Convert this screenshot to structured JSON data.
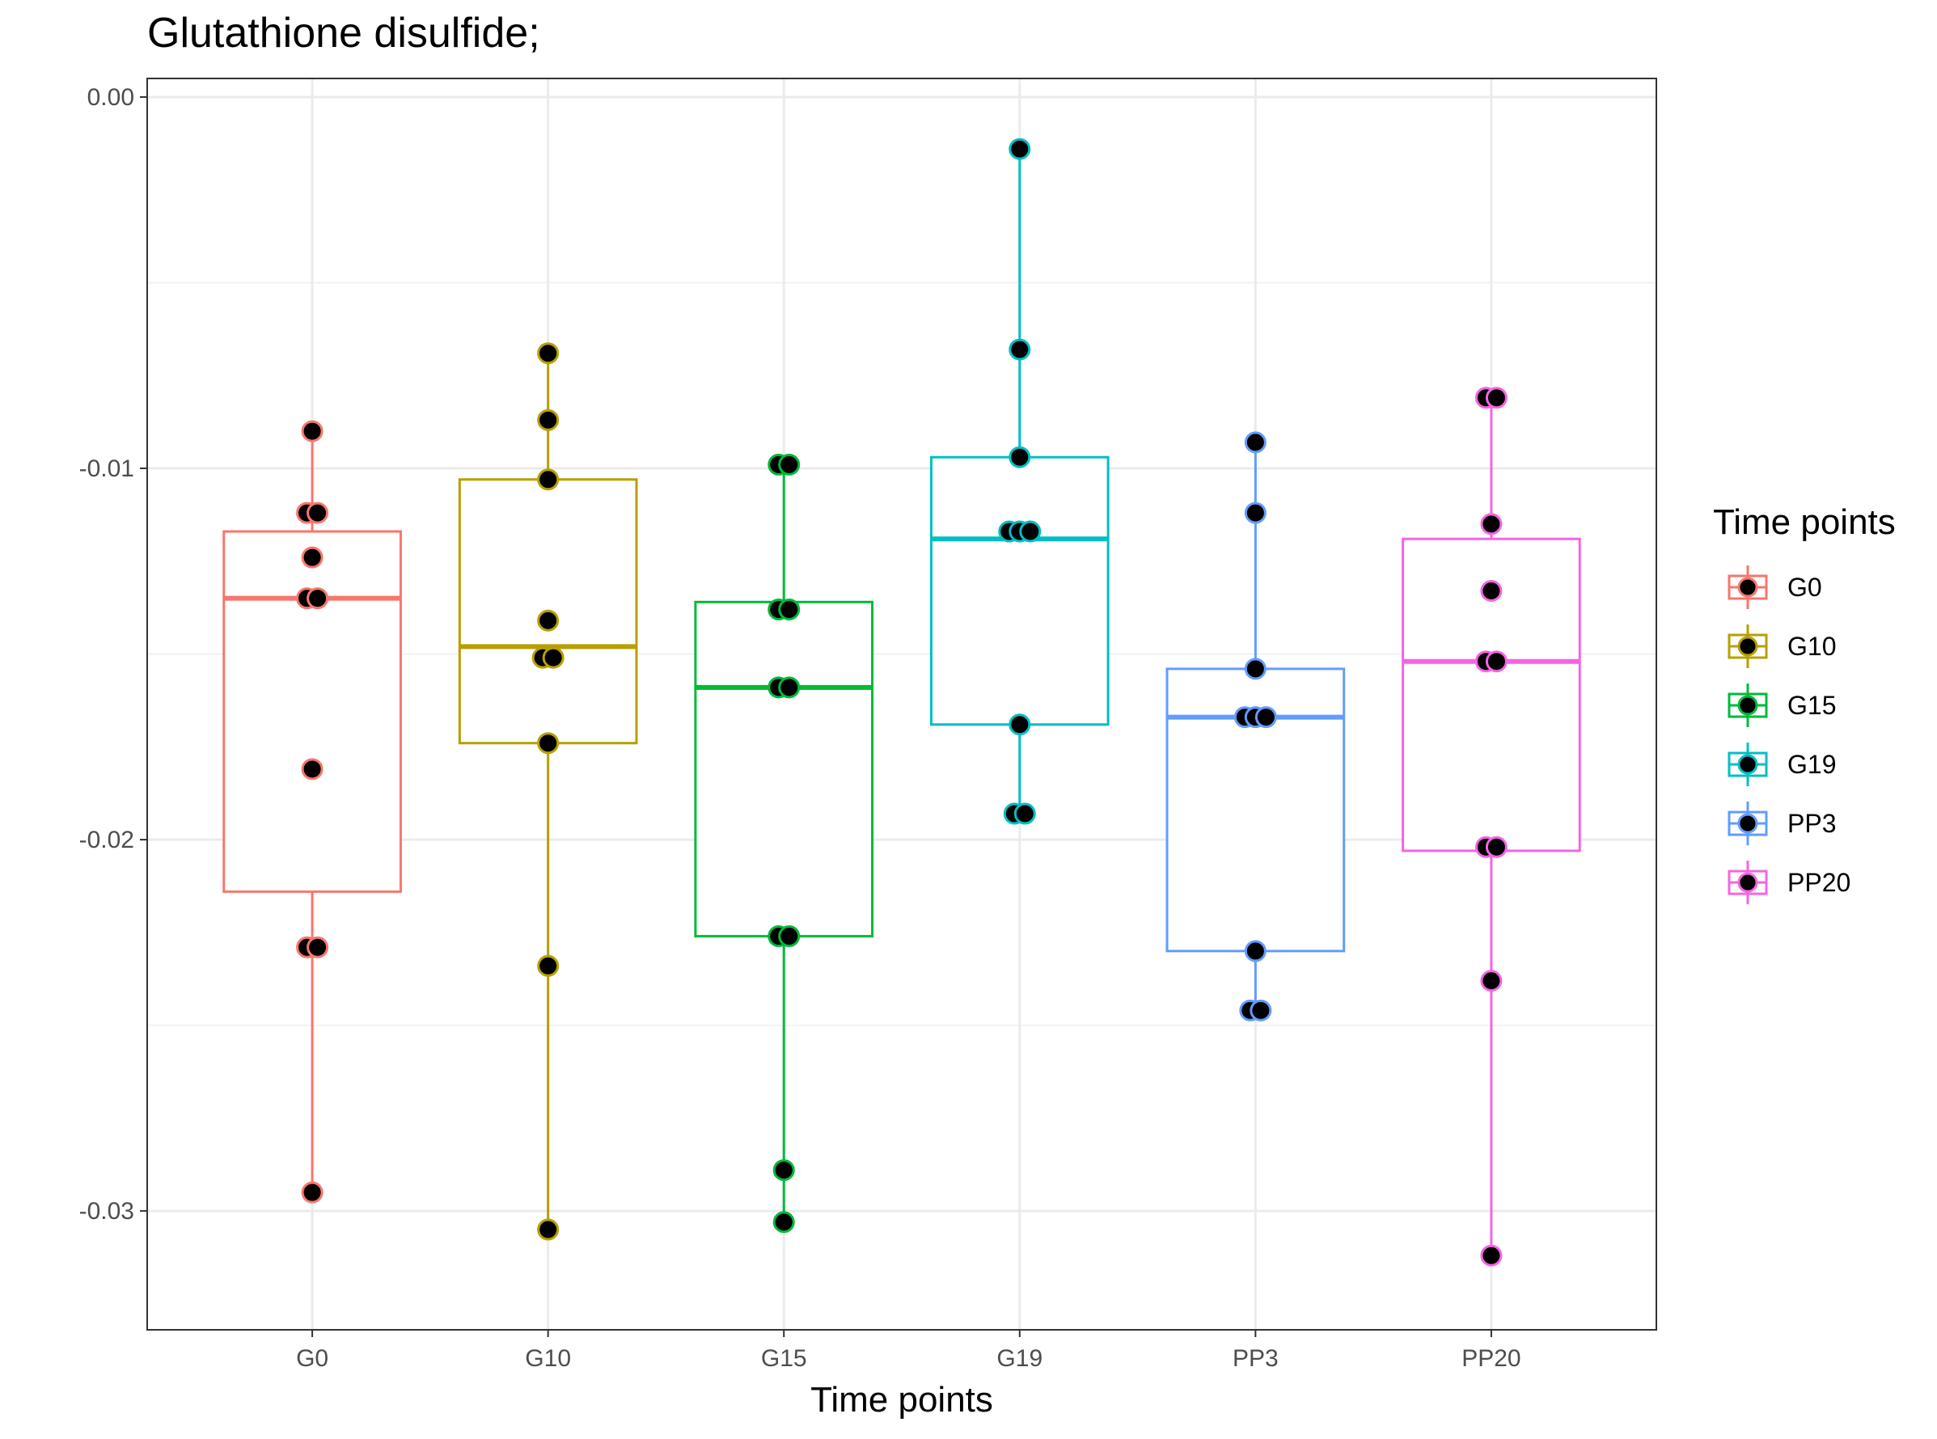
{
  "chart_data": {
    "type": "box",
    "title": "Glutathione disulfide;",
    "xlabel": "Time points",
    "ylabel": "",
    "ylim": [
      -0.0332,
      0.0005
    ],
    "yticks": [
      0.0,
      -0.01,
      -0.02,
      -0.03
    ],
    "ytick_labels": [
      "0.00",
      "-0.01",
      "-0.02",
      "-0.03"
    ],
    "grid": true,
    "legend": {
      "title": "Time points",
      "position": "right"
    },
    "categories": [
      "G0",
      "G10",
      "G15",
      "G19",
      "PP3",
      "PP20"
    ],
    "series": [
      {
        "name": "G0",
        "color": "#F8766D",
        "box": {
          "min": -0.0295,
          "q1": -0.0214,
          "median": -0.0135,
          "q3": -0.0117,
          "max": -0.009
        },
        "points": [
          -0.009,
          -0.0112,
          -0.0112,
          -0.0124,
          -0.0135,
          -0.0135,
          -0.0181,
          -0.0229,
          -0.0229,
          -0.0295
        ]
      },
      {
        "name": "G10",
        "color": "#B79F00",
        "box": {
          "min": -0.0305,
          "q1": -0.0174,
          "median": -0.0148,
          "q3": -0.0103,
          "max": -0.0069
        },
        "points": [
          -0.0069,
          -0.0087,
          -0.0103,
          -0.0141,
          -0.0151,
          -0.0151,
          -0.0174,
          -0.0234,
          -0.0305
        ]
      },
      {
        "name": "G15",
        "color": "#00BA38",
        "box": {
          "min": -0.0303,
          "q1": -0.0226,
          "median": -0.0159,
          "q3": -0.0136,
          "max": -0.0099
        },
        "points": [
          -0.0099,
          -0.0099,
          -0.0138,
          -0.0138,
          -0.0159,
          -0.0159,
          -0.0226,
          -0.0226,
          -0.0289,
          -0.0303
        ]
      },
      {
        "name": "G19",
        "color": "#00BFC4",
        "box": {
          "min": -0.0193,
          "q1": -0.0169,
          "median": -0.0119,
          "q3": -0.0097,
          "max": -0.0014
        },
        "points": [
          -0.0014,
          -0.0068,
          -0.0097,
          -0.0117,
          -0.0117,
          -0.0117,
          -0.0169,
          -0.0193,
          -0.0193
        ]
      },
      {
        "name": "PP3",
        "color": "#619CFF",
        "box": {
          "min": -0.0246,
          "q1": -0.023,
          "median": -0.0167,
          "q3": -0.0154,
          "max": -0.0093
        },
        "points": [
          -0.0093,
          -0.0112,
          -0.0154,
          -0.0167,
          -0.0167,
          -0.0167,
          -0.023,
          -0.0246,
          -0.0246
        ]
      },
      {
        "name": "PP20",
        "color": "#F564E3",
        "box": {
          "min": -0.0312,
          "q1": -0.0203,
          "median": -0.0152,
          "q3": -0.0119,
          "max": -0.0081
        },
        "points": [
          -0.0081,
          -0.0081,
          -0.0115,
          -0.0133,
          -0.0152,
          -0.0152,
          -0.0202,
          -0.0202,
          -0.0238,
          -0.0312
        ]
      }
    ]
  }
}
